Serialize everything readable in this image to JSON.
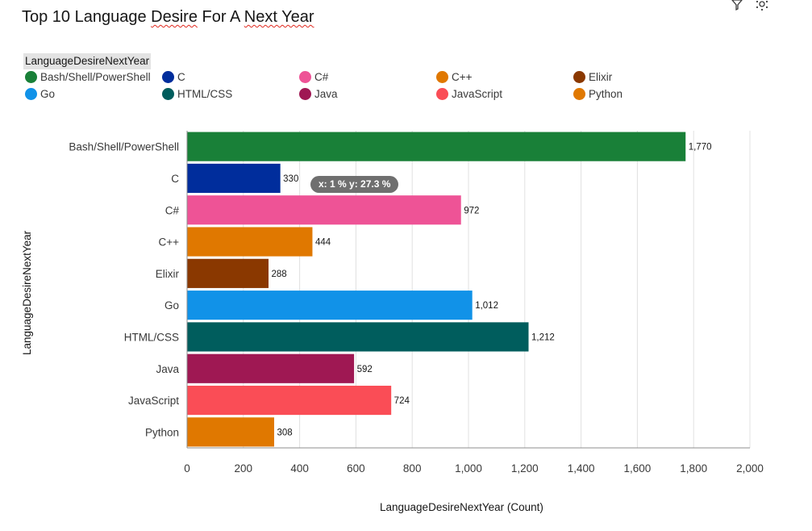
{
  "page": {
    "title_plain": "Top 10 Language ",
    "title_squiggly_1": "Desire",
    "title_mid": " For A ",
    "title_squiggly_2": "Next Year",
    "toolbar_icons": [
      "filter-icon",
      "settings-icon"
    ]
  },
  "legend": {
    "title": "LanguageDesireNextYear"
  },
  "tooltip": {
    "text": "x: 1 %  y: 27.3 %"
  },
  "chart_data": {
    "type": "bar",
    "orientation": "horizontal",
    "categories": [
      "Bash/Shell/PowerShell",
      "C",
      "C#",
      "C++",
      "Elixir",
      "Go",
      "HTML/CSS",
      "Java",
      "JavaScript",
      "Python"
    ],
    "values": [
      1770,
      330,
      972,
      444,
      288,
      1012,
      1212,
      592,
      724,
      308
    ],
    "value_labels": [
      "1,770",
      "330",
      "972",
      "444",
      "288",
      "1,012",
      "1,212",
      "592",
      "724",
      "308"
    ],
    "colors": [
      "#198038",
      "#002d9c",
      "#ee5396",
      "#e07800",
      "#8a3800",
      "#1192e8",
      "#005d5d",
      "#9f1853",
      "#fa4d56",
      "#e07800"
    ],
    "xlabel": "LanguageDesireNextYear (Count)",
    "ylabel": "LanguageDesireNextYear",
    "xlim": [
      0,
      2000
    ],
    "xticks": [
      0,
      200,
      400,
      600,
      800,
      1000,
      1200,
      1400,
      1600,
      1800,
      2000
    ],
    "xtick_labels": [
      "0",
      "200",
      "400",
      "600",
      "800",
      "1,000",
      "1,200",
      "1,400",
      "1,600",
      "1,800",
      "2,000"
    ],
    "grid": "vertical",
    "legend_position": "top-left"
  }
}
